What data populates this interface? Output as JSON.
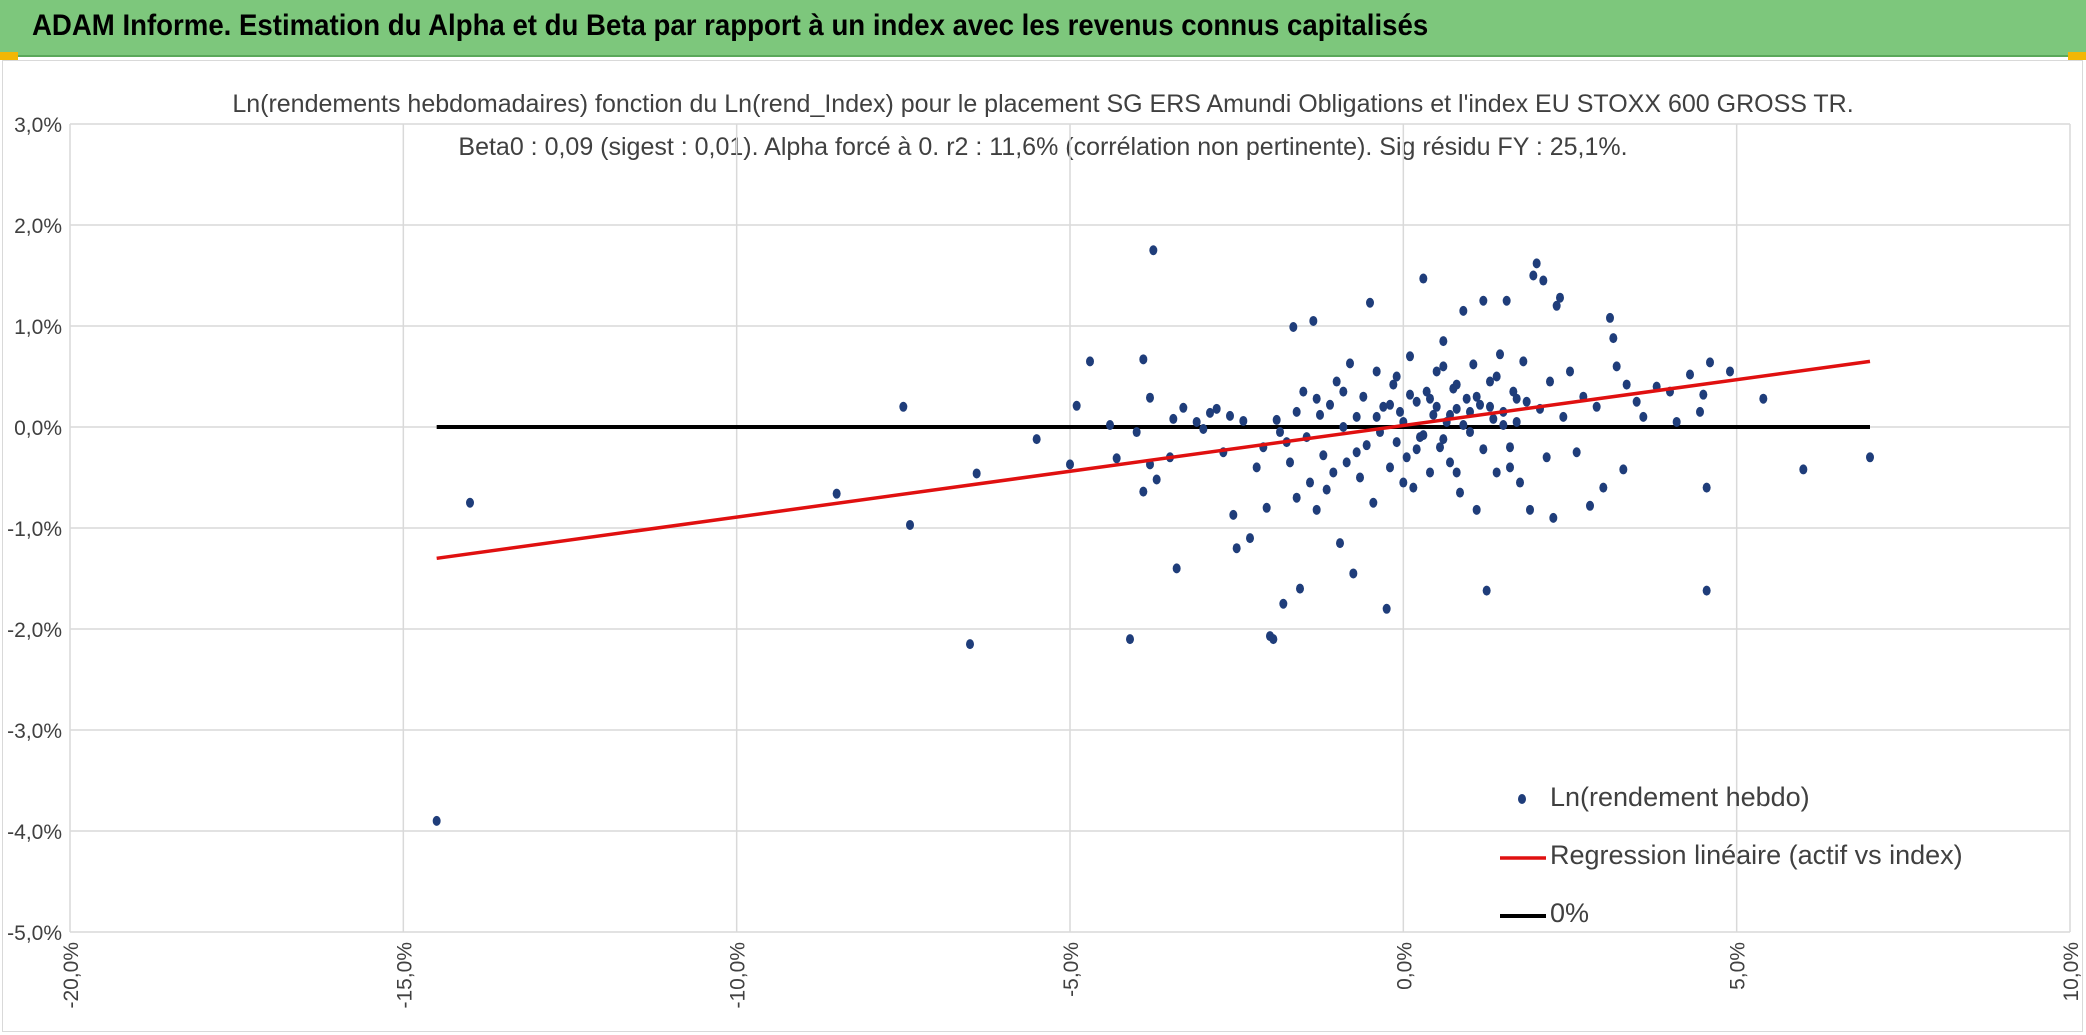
{
  "header": {
    "title": "ADAM Informe. Estimation du Alpha et du Beta par rapport à un index avec les revenus connus capitalisés"
  },
  "colors": {
    "header_bg": "#7dc77c",
    "points": "#1f3d7a",
    "regression": "#e01010",
    "zero_line": "#000000",
    "corner_accent": "#f2b705"
  },
  "chart_data": {
    "type": "scatter",
    "title_line1": "Ln(rendements hebdomadaires) fonction du Ln(rend_Index) pour le placement SG ERS Amundi Obligations et l'index EU STOXX 600 GROSS TR.",
    "title_line2": "Beta0 : 0,09 (sigest : 0,01). Alpha forcé à 0. r2 : 11,6% (corrélation non pertinente). Sig résidu FY : 25,1%.",
    "xlim": [
      -20,
      10
    ],
    "ylim": [
      -5,
      3
    ],
    "x_ticks": [
      -20,
      -15,
      -10,
      -5,
      0,
      5,
      10
    ],
    "x_tick_labels": [
      "-20,0%",
      "-15,0%",
      "-10,0%",
      "-5,0%",
      "0,0%",
      "5,0%",
      "10,0%"
    ],
    "y_ticks": [
      3,
      2,
      1,
      0,
      -1,
      -2,
      -3,
      -4,
      -5
    ],
    "y_tick_labels": [
      "3,0%",
      "2,0%",
      "1,0%",
      "0,0%",
      "-1,0%",
      "-2,0%",
      "-3,0%",
      "-4,0%",
      "-5,0%"
    ],
    "grid": true,
    "legend_position": "bottom-right",
    "series": [
      {
        "name": "Ln(rendement hebdo)",
        "kind": "scatter",
        "points": [
          [
            -14.5,
            -3.9
          ],
          [
            -14.0,
            -0.75
          ],
          [
            -8.5,
            -0.66
          ],
          [
            -7.5,
            0.2
          ],
          [
            -7.4,
            -0.97
          ],
          [
            -6.5,
            -2.15
          ],
          [
            -6.4,
            -0.46
          ],
          [
            -5.5,
            -0.12
          ],
          [
            -5.0,
            -0.37
          ],
          [
            -4.9,
            0.21
          ],
          [
            -4.7,
            0.65
          ],
          [
            -4.4,
            0.02
          ],
          [
            -4.3,
            -0.31
          ],
          [
            -4.1,
            -2.1
          ],
          [
            -4.0,
            -0.05
          ],
          [
            -3.9,
            0.67
          ],
          [
            -3.9,
            -0.64
          ],
          [
            -3.8,
            0.29
          ],
          [
            -3.8,
            -0.37
          ],
          [
            -3.75,
            1.75
          ],
          [
            -3.7,
            -0.52
          ],
          [
            -3.5,
            -0.3
          ],
          [
            -3.45,
            0.08
          ],
          [
            -3.4,
            -1.4
          ],
          [
            -3.3,
            0.19
          ],
          [
            -3.1,
            0.05
          ],
          [
            -3.0,
            -0.02
          ],
          [
            -2.9,
            0.14
          ],
          [
            -2.8,
            0.18
          ],
          [
            -2.7,
            -0.25
          ],
          [
            -2.6,
            0.11
          ],
          [
            -2.55,
            -0.87
          ],
          [
            -2.5,
            -1.2
          ],
          [
            -2.4,
            0.06
          ],
          [
            -2.3,
            -1.1
          ],
          [
            -2.2,
            -0.4
          ],
          [
            -2.1,
            -0.2
          ],
          [
            -2.05,
            -0.8
          ],
          [
            -2.0,
            -2.07
          ],
          [
            -1.95,
            -2.1
          ],
          [
            -1.9,
            0.07
          ],
          [
            -1.85,
            -0.05
          ],
          [
            -1.8,
            -1.75
          ],
          [
            -1.75,
            -0.15
          ],
          [
            -1.7,
            -0.35
          ],
          [
            -1.65,
            0.99
          ],
          [
            -1.6,
            -0.7
          ],
          [
            -1.55,
            -1.6
          ],
          [
            -1.5,
            0.35
          ],
          [
            -1.45,
            -0.1
          ],
          [
            -1.4,
            -0.55
          ],
          [
            -1.35,
            1.05
          ],
          [
            -1.3,
            -0.82
          ],
          [
            -1.25,
            0.12
          ],
          [
            -1.2,
            -0.28
          ],
          [
            -1.15,
            -0.62
          ],
          [
            -1.1,
            0.22
          ],
          [
            -1.05,
            -0.45
          ],
          [
            -1.0,
            0.45
          ],
          [
            -0.95,
            -1.15
          ],
          [
            -0.9,
            0.0
          ],
          [
            -0.85,
            -0.35
          ],
          [
            -0.8,
            0.63
          ],
          [
            -0.75,
            -1.45
          ],
          [
            -0.7,
            0.1
          ],
          [
            -0.65,
            -0.5
          ],
          [
            -0.6,
            0.3
          ],
          [
            -0.55,
            -0.18
          ],
          [
            -0.5,
            1.23
          ],
          [
            -0.45,
            -0.75
          ],
          [
            -0.4,
            0.55
          ],
          [
            -0.35,
            -0.05
          ],
          [
            -0.3,
            0.2
          ],
          [
            -0.25,
            -1.8
          ],
          [
            -0.2,
            -0.4
          ],
          [
            -0.15,
            0.42
          ],
          [
            -0.1,
            -0.15
          ],
          [
            -0.05,
            0.15
          ],
          [
            0.0,
            0.05
          ],
          [
            0.05,
            -0.3
          ],
          [
            0.1,
            0.7
          ],
          [
            0.15,
            -0.6
          ],
          [
            0.2,
            0.25
          ],
          [
            0.25,
            -0.1
          ],
          [
            0.3,
            1.47
          ],
          [
            0.35,
            0.35
          ],
          [
            0.4,
            -0.45
          ],
          [
            0.45,
            0.12
          ],
          [
            0.5,
            0.55
          ],
          [
            0.55,
            -0.2
          ],
          [
            0.6,
            0.85
          ],
          [
            0.65,
            0.05
          ],
          [
            0.7,
            -0.35
          ],
          [
            0.75,
            0.38
          ],
          [
            0.8,
            0.18
          ],
          [
            0.85,
            -0.65
          ],
          [
            0.9,
            1.15
          ],
          [
            0.95,
            0.28
          ],
          [
            1.0,
            -0.05
          ],
          [
            1.05,
            0.62
          ],
          [
            1.1,
            -0.82
          ],
          [
            1.15,
            0.22
          ],
          [
            1.2,
            1.25
          ],
          [
            1.25,
            -1.62
          ],
          [
            1.3,
            0.45
          ],
          [
            1.35,
            0.08
          ],
          [
            1.4,
            -0.45
          ],
          [
            1.45,
            0.72
          ],
          [
            1.5,
            0.15
          ],
          [
            1.55,
            1.25
          ],
          [
            1.6,
            -0.2
          ],
          [
            1.65,
            0.35
          ],
          [
            1.7,
            0.05
          ],
          [
            1.75,
            -0.55
          ],
          [
            1.8,
            0.65
          ],
          [
            1.85,
            0.25
          ],
          [
            1.9,
            -0.82
          ],
          [
            1.95,
            1.5
          ],
          [
            2.0,
            1.62
          ],
          [
            2.05,
            0.18
          ],
          [
            2.1,
            1.45
          ],
          [
            2.15,
            -0.3
          ],
          [
            2.2,
            0.45
          ],
          [
            2.25,
            -0.9
          ],
          [
            2.3,
            1.2
          ],
          [
            2.35,
            1.28
          ],
          [
            2.4,
            0.1
          ],
          [
            2.5,
            0.55
          ],
          [
            2.6,
            -0.25
          ],
          [
            2.7,
            0.3
          ],
          [
            2.8,
            -0.78
          ],
          [
            2.9,
            0.2
          ],
          [
            3.0,
            -0.6
          ],
          [
            3.1,
            1.08
          ],
          [
            3.15,
            0.88
          ],
          [
            3.2,
            0.6
          ],
          [
            3.3,
            -0.42
          ],
          [
            3.35,
            0.42
          ],
          [
            3.5,
            0.25
          ],
          [
            3.6,
            0.1
          ],
          [
            3.8,
            0.4
          ],
          [
            4.0,
            0.35
          ],
          [
            4.1,
            0.05
          ],
          [
            4.3,
            0.52
          ],
          [
            4.45,
            0.15
          ],
          [
            4.5,
            0.32
          ],
          [
            4.55,
            -0.6
          ],
          [
            4.55,
            -1.62
          ],
          [
            4.6,
            0.64
          ],
          [
            4.9,
            0.55
          ],
          [
            5.4,
            0.28
          ],
          [
            6.0,
            -0.42
          ],
          [
            7.0,
            -0.3
          ],
          [
            -1.6,
            0.15
          ],
          [
            -1.3,
            0.28
          ],
          [
            -0.9,
            0.35
          ],
          [
            -0.7,
            -0.25
          ],
          [
            -0.4,
            0.1
          ],
          [
            -0.2,
            0.22
          ],
          [
            0.1,
            0.32
          ],
          [
            0.3,
            -0.08
          ],
          [
            0.5,
            0.2
          ],
          [
            0.7,
            0.12
          ],
          [
            0.9,
            0.02
          ],
          [
            1.1,
            0.3
          ],
          [
            1.3,
            0.2
          ],
          [
            1.5,
            0.02
          ],
          [
            1.7,
            0.28
          ],
          [
            0.2,
            -0.22
          ],
          [
            0.4,
            0.28
          ],
          [
            0.6,
            -0.12
          ],
          [
            0.8,
            0.42
          ],
          [
            1.0,
            0.15
          ],
          [
            1.2,
            -0.22
          ],
          [
            -0.1,
            0.5
          ],
          [
            0.0,
            -0.55
          ],
          [
            0.6,
            0.6
          ],
          [
            0.8,
            -0.45
          ],
          [
            1.4,
            0.5
          ],
          [
            1.6,
            -0.4
          ]
        ]
      },
      {
        "name": "Regression linéaire (actif vs index)",
        "kind": "line",
        "points": [
          [
            -14.5,
            -1.3
          ],
          [
            7.0,
            0.65
          ]
        ]
      },
      {
        "name": "0%",
        "kind": "line",
        "points": [
          [
            -14.5,
            0
          ],
          [
            7.0,
            0
          ]
        ]
      }
    ]
  }
}
